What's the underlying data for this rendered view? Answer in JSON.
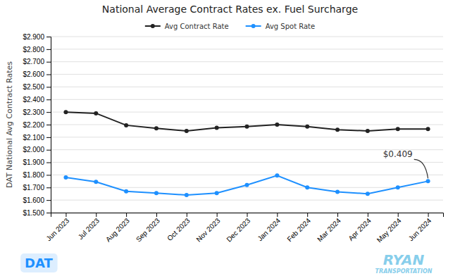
{
  "chart_data": {
    "type": "line",
    "title": "National Average Contract Rates ex. Fuel Surcharge",
    "y_label": "DAT National Avg Contract Rates",
    "categories": [
      "Jun 2023",
      "Jul 2023",
      "Aug 2023",
      "Sep 2023",
      "Oct 2023",
      "Nov 2023",
      "Dec 2023",
      "Jan 2024",
      "Feb 2024",
      "Mar 2024",
      "Apr 2024",
      "May 2024",
      "Jun 2024"
    ],
    "series": [
      {
        "name": "Avg Contract Rate",
        "color": "#222222",
        "marker": "circle",
        "values": [
          2.3,
          2.29,
          2.195,
          2.17,
          2.15,
          2.175,
          2.185,
          2.2,
          2.185,
          2.16,
          2.15,
          2.165,
          2.165
        ]
      },
      {
        "name": "Avg Spot Rate",
        "color": "#1e90ff",
        "marker": "circle",
        "values": [
          1.78,
          1.745,
          1.67,
          1.655,
          1.64,
          1.655,
          1.72,
          1.795,
          1.7,
          1.665,
          1.65,
          1.7,
          1.75
        ]
      }
    ],
    "ylim": [
      1.5,
      2.9
    ],
    "yticks": [
      {
        "value": 1.5,
        "label": "$1.500"
      },
      {
        "value": 1.6,
        "label": "$1.600"
      },
      {
        "value": 1.7,
        "label": "$1.700"
      },
      {
        "value": 1.8,
        "label": "$1.800"
      },
      {
        "value": 1.9,
        "label": "$1.900"
      },
      {
        "value": 2.0,
        "label": "$2.000"
      },
      {
        "value": 2.1,
        "label": "$2.100"
      },
      {
        "value": 2.2,
        "label": "$2.200"
      },
      {
        "value": 2.3,
        "label": "$2.300"
      },
      {
        "value": 2.4,
        "label": "$2.400"
      },
      {
        "value": 2.5,
        "label": "$2.500"
      },
      {
        "value": 2.6,
        "label": "$2.600"
      },
      {
        "value": 2.7,
        "label": "$2.700"
      },
      {
        "value": 2.8,
        "label": "$2.800"
      },
      {
        "value": 2.9,
        "label": "$2.900"
      }
    ],
    "grid": true,
    "legend": "top",
    "annotations": [
      {
        "text": "$0.409",
        "x": "May 2024",
        "y": 1.94
      },
      {
        "text": "DAT"
      },
      {
        "text": "RYAN"
      },
      {
        "text": "TRANSPORTATION"
      }
    ]
  }
}
